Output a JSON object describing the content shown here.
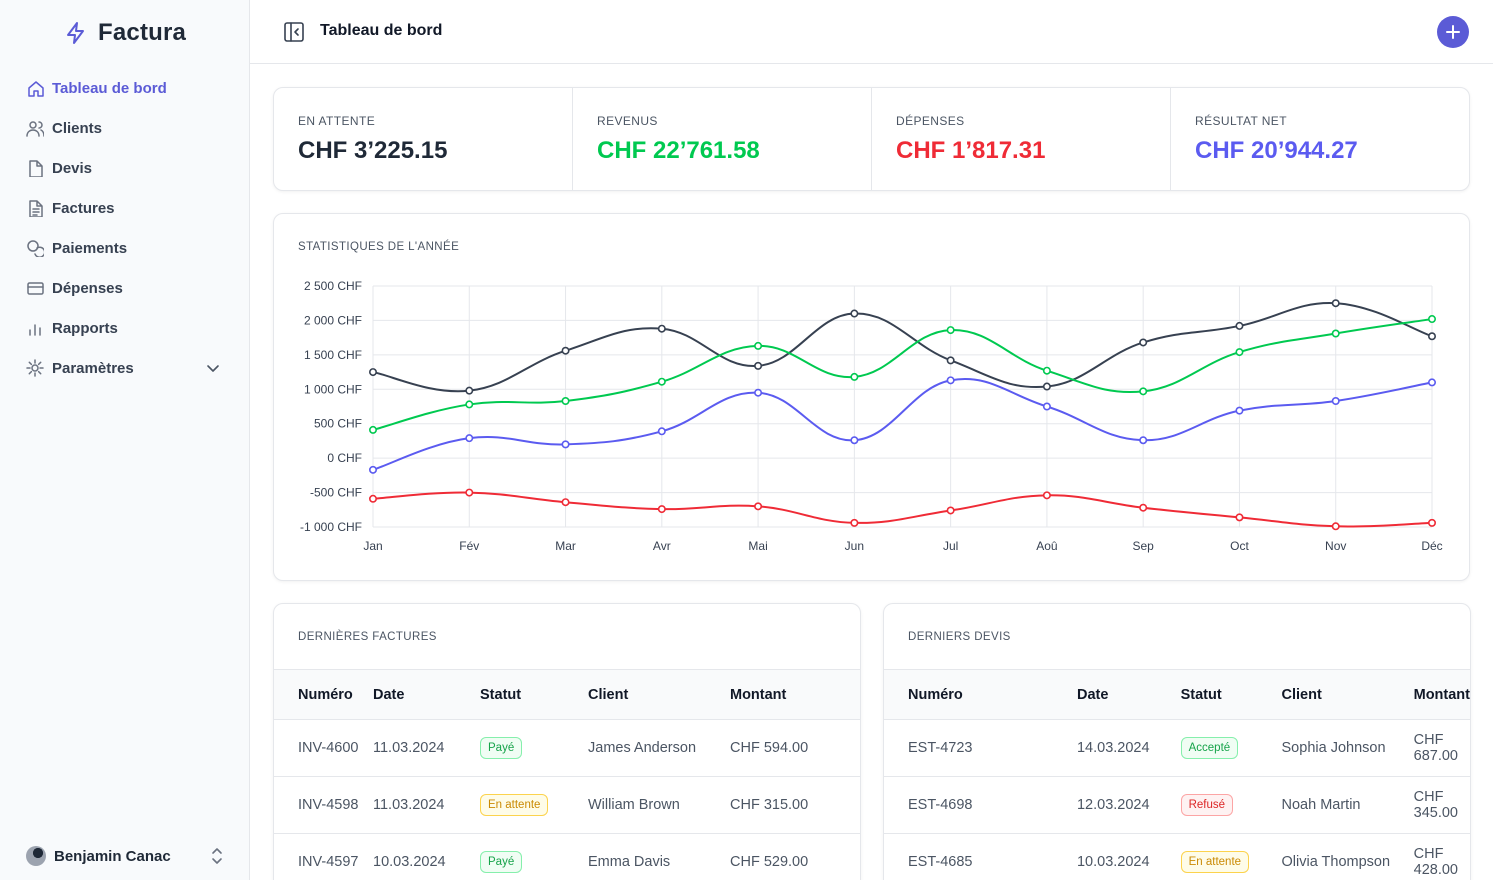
{
  "brand": {
    "name": "Factura",
    "color": "#5b5bd6"
  },
  "sidebar": {
    "items": [
      {
        "label": "Tableau de bord",
        "icon": "home-icon",
        "active": true
      },
      {
        "label": "Clients",
        "icon": "users-icon"
      },
      {
        "label": "Devis",
        "icon": "file-icon"
      },
      {
        "label": "Factures",
        "icon": "file-text-icon"
      },
      {
        "label": "Paiements",
        "icon": "coins-icon"
      },
      {
        "label": "Dépenses",
        "icon": "credit-card-icon"
      },
      {
        "label": "Rapports",
        "icon": "bar-chart-icon"
      },
      {
        "label": "Paramètres",
        "icon": "gear-icon",
        "expandable": true
      }
    ],
    "user": {
      "name": "Benjamin Canac"
    }
  },
  "header": {
    "title": "Tableau de bord"
  },
  "stats": [
    {
      "label": "En attente",
      "value": "CHF 3’225.15",
      "color": "#1f2937"
    },
    {
      "label": "Revenus",
      "value": "CHF 22’761.58",
      "color": "#00c950"
    },
    {
      "label": "Dépenses",
      "value": "CHF 1’817.31",
      "color": "#ef2b36"
    },
    {
      "label": "Résultat net",
      "value": "CHF 20’944.27",
      "color": "#5b5bf0"
    }
  ],
  "chart": {
    "title": "Statistiques de l'année"
  },
  "chart_data": {
    "type": "line",
    "title": "",
    "x": [
      "Jan",
      "Fév",
      "Mar",
      "Avr",
      "Mai",
      "Jun",
      "Jul",
      "Aoû",
      "Sep",
      "Oct",
      "Nov",
      "Déc"
    ],
    "ylim": [
      -1000,
      2500
    ],
    "yticks": [
      -1000,
      -500,
      0,
      500,
      1000,
      1500,
      2000,
      2500
    ],
    "ytick_labels": [
      "-1 000 CHF",
      "-500 CHF",
      "0 CHF",
      "500 CHF",
      "1 000 CHF",
      "1 500 CHF",
      "2 000 CHF",
      "2 500 CHF"
    ],
    "grid": true,
    "legend": "none",
    "series": [
      {
        "color": "#374151",
        "values": [
          1250,
          980,
          1560,
          1880,
          1340,
          2100,
          1420,
          1040,
          1680,
          1920,
          2250,
          1770
        ]
      },
      {
        "color": "#00c950",
        "values": [
          410,
          780,
          830,
          1110,
          1630,
          1180,
          1860,
          1270,
          970,
          1540,
          1810,
          2020
        ]
      },
      {
        "color": "#5b5bf0",
        "values": [
          -170,
          290,
          200,
          390,
          950,
          260,
          1130,
          750,
          260,
          690,
          830,
          1100
        ]
      },
      {
        "color": "#ef2b36",
        "values": [
          -590,
          -500,
          -640,
          -740,
          -700,
          -940,
          -760,
          -540,
          -720,
          -860,
          -990,
          -940
        ]
      }
    ]
  },
  "invoices": {
    "title": "Dernières factures",
    "columns": [
      "Numéro",
      "Date",
      "Statut",
      "Client",
      "Montant"
    ],
    "rows": [
      {
        "number": "INV-4600",
        "date": "11.03.2024",
        "status": "Payé",
        "status_kind": "paid",
        "client": "James Anderson",
        "amount": "CHF 594.00"
      },
      {
        "number": "INV-4598",
        "date": "11.03.2024",
        "status": "En attente",
        "status_kind": "pending",
        "client": "William Brown",
        "amount": "CHF 315.00"
      },
      {
        "number": "INV-4597",
        "date": "10.03.2024",
        "status": "Payé",
        "status_kind": "paid",
        "client": "Emma Davis",
        "amount": "CHF 529.00"
      }
    ]
  },
  "quotes": {
    "title": "Derniers devis",
    "columns": [
      "Numéro",
      "Date",
      "Statut",
      "Client",
      "Montant"
    ],
    "rows": [
      {
        "number": "EST-4723",
        "date": "14.03.2024",
        "status": "Accepté",
        "status_kind": "paid",
        "client": "Sophia Johnson",
        "amount": "CHF 687.00"
      },
      {
        "number": "EST-4698",
        "date": "12.03.2024",
        "status": "Refusé",
        "status_kind": "refused",
        "client": "Noah Martin",
        "amount": "CHF 345.00"
      },
      {
        "number": "EST-4685",
        "date": "10.03.2024",
        "status": "En attente",
        "status_kind": "pending",
        "client": "Olivia Thompson",
        "amount": "CHF 428.00"
      }
    ]
  }
}
